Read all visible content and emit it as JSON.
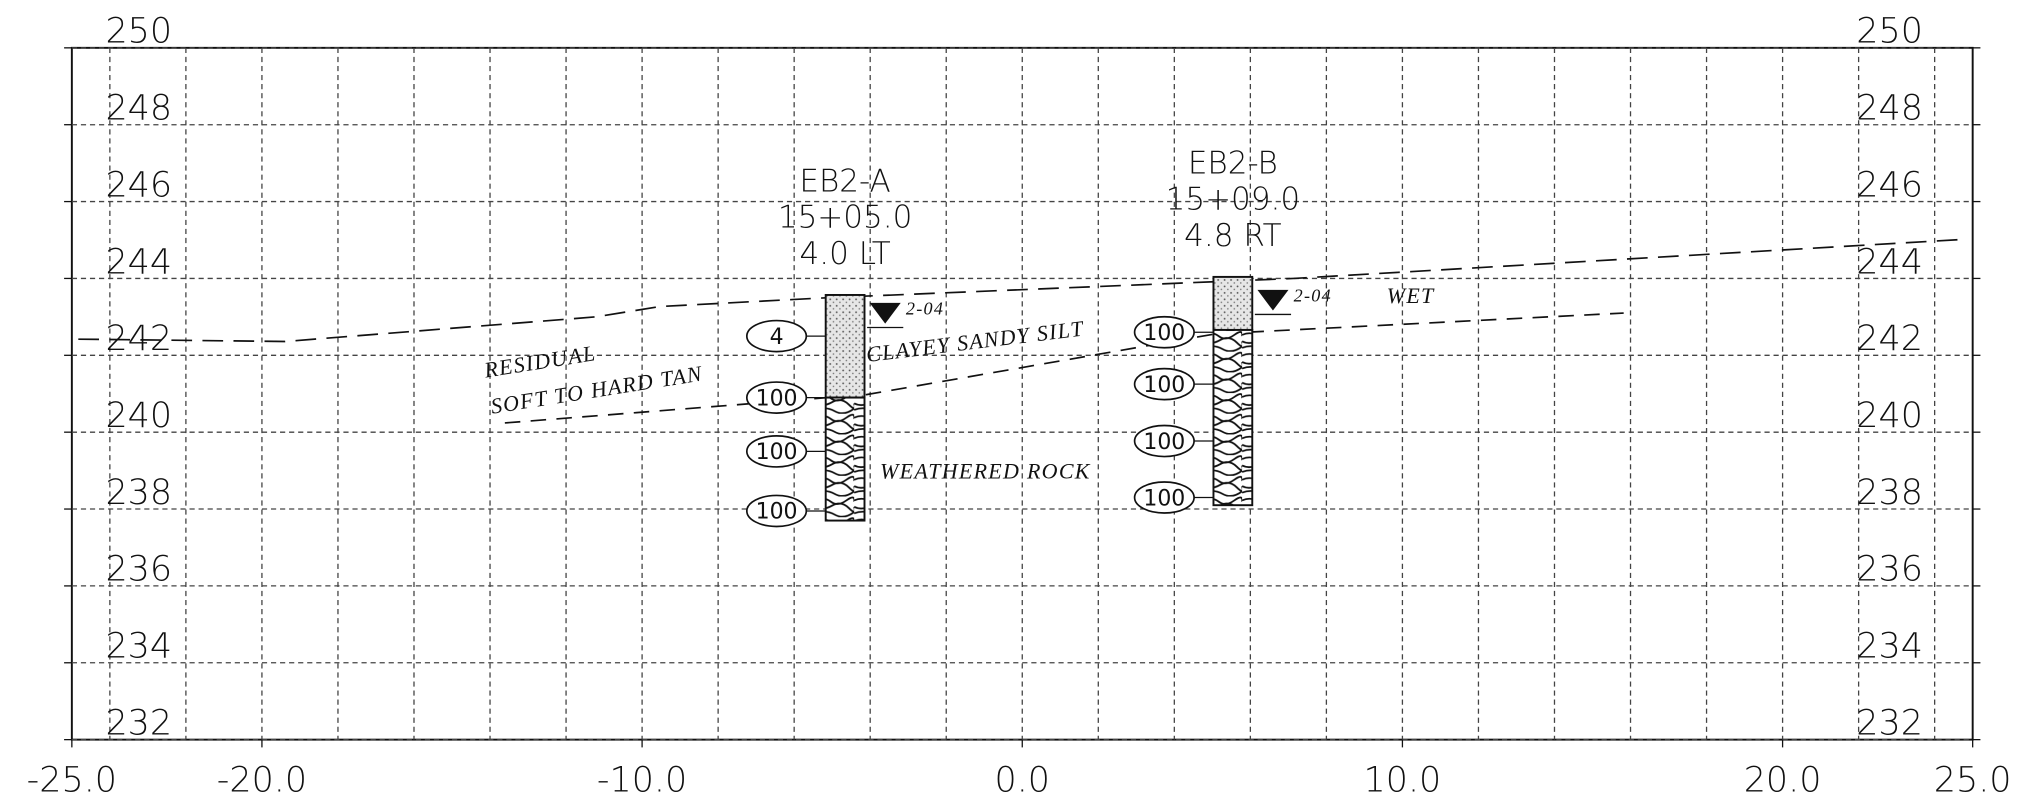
{
  "drawing": {
    "x_axis": {
      "xlim": [
        -25,
        25
      ],
      "xticks": [
        {
          "value": -25,
          "label": "-25.0"
        },
        {
          "value": -20,
          "label": "-20.0"
        },
        {
          "value": -10,
          "label": "-10.0"
        },
        {
          "value": 0,
          "label": "0.0"
        },
        {
          "value": 10,
          "label": "10.0"
        },
        {
          "value": 20,
          "label": "20.0"
        },
        {
          "value": 25,
          "label": "25.0"
        }
      ],
      "x_grid": [
        -24,
        -22,
        -20,
        -18,
        -16,
        -14,
        -12,
        -10,
        -8,
        -6,
        -4,
        -2,
        0,
        2,
        4,
        6,
        8,
        10,
        12,
        14,
        16,
        18,
        20,
        22,
        24
      ]
    },
    "y_axis": {
      "ylim": [
        232,
        250
      ],
      "yticks": [
        232,
        234,
        236,
        238,
        240,
        242,
        244,
        246,
        248,
        250
      ]
    },
    "ground_line": {
      "x": [
        -24.83,
        -19.39,
        -11.22,
        -9.52,
        -5.1,
        7.14,
        24.83
      ],
      "elev": [
        242.42,
        242.36,
        243.0,
        243.27,
        243.5,
        244.0,
        245.02
      ]
    },
    "rock_line": {
      "x": [
        -13.61,
        -4.08,
        5.1,
        15.82
      ],
      "elev": [
        240.24,
        240.98,
        242.56,
        243.1
      ]
    },
    "borings": [
      {
        "name": "EB2-A",
        "station": "15+05.0",
        "offset": "4.0 LT",
        "x": -4.66,
        "top": 243.57,
        "rock_top": 240.9,
        "bottom": 237.7,
        "spt": [
          {
            "value": 4,
            "elev": 242.5
          },
          {
            "value": 100,
            "elev": 240.9
          },
          {
            "value": 100,
            "elev": 239.5
          },
          {
            "value": 100,
            "elev": 237.95
          }
        ],
        "water_elev": 243.06,
        "water_date": "2-04"
      },
      {
        "name": "EB2-B",
        "station": "15+09.0",
        "offset": "4.8 RT",
        "x": 5.54,
        "top": 244.04,
        "rock_top": 242.66,
        "bottom": 238.1,
        "spt": [
          {
            "value": 100,
            "elev": 242.6
          },
          {
            "value": 100,
            "elev": 241.25
          },
          {
            "value": 100,
            "elev": 239.77
          },
          {
            "value": 100,
            "elev": 238.3
          }
        ],
        "water_elev": 243.4,
        "water_date": "2-04",
        "water_note": "WET"
      }
    ],
    "annotations": {
      "residual": "RESIDUAL",
      "soil": "SOFT TO HARD TAN",
      "silt": "CLAYEY SANDY SILT",
      "rock": "WEATHERED ROCK"
    }
  }
}
